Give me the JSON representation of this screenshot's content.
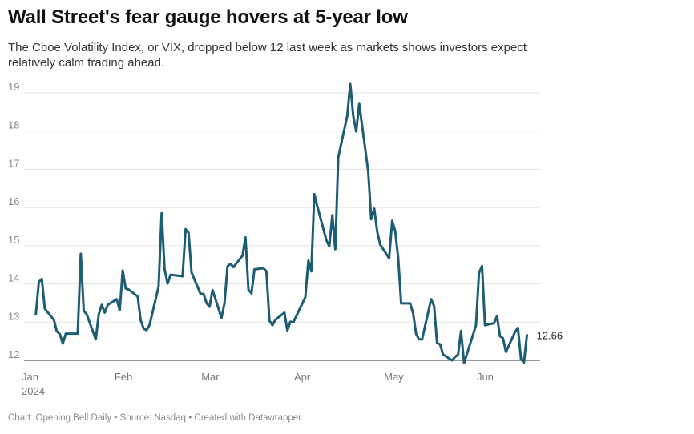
{
  "chart_data": {
    "type": "line",
    "title": "Wall Street's fear gauge hovers at 5-year low",
    "subtitle": "The Cboe Volatility Index, or VIX, dropped below 12 last week as markets shows investors expect relatively calm trading ahead.",
    "footer": "Chart: Opening Bell Daily • Source: Nasdaq • Created with Datawrapper",
    "ylim": [
      12,
      19
    ],
    "y_ticks": [
      "19",
      "18",
      "17",
      "16",
      "15",
      "14",
      "13",
      "12"
    ],
    "x_ticks": [
      {
        "label": "Jan",
        "sub": "2024"
      },
      {
        "label": "Feb",
        "sub": ""
      },
      {
        "label": "Mar",
        "sub": ""
      },
      {
        "label": "Apr",
        "sub": ""
      },
      {
        "label": "May",
        "sub": ""
      },
      {
        "label": "Jun",
        "sub": ""
      }
    ],
    "grid": true,
    "line_color": "#1d5d74",
    "series": [
      {
        "x": [
          "2024-01-02",
          "2024-01-03",
          "2024-01-04",
          "2024-01-05",
          "2024-01-08",
          "2024-01-09",
          "2024-01-10",
          "2024-01-11",
          "2024-01-12",
          "2024-01-16",
          "2024-01-17",
          "2024-01-18",
          "2024-01-19",
          "2024-01-22",
          "2024-01-23",
          "2024-01-24",
          "2024-01-25",
          "2024-01-26",
          "2024-01-29",
          "2024-01-30",
          "2024-01-31",
          "2024-02-01",
          "2024-02-02",
          "2024-02-05",
          "2024-02-06",
          "2024-02-07",
          "2024-02-08",
          "2024-02-09",
          "2024-02-12",
          "2024-02-13",
          "2024-02-14",
          "2024-02-15",
          "2024-02-16",
          "2024-02-20",
          "2024-02-21",
          "2024-02-22",
          "2024-02-23",
          "2024-02-26",
          "2024-02-27",
          "2024-02-28",
          "2024-02-29",
          "2024-03-01",
          "2024-03-04",
          "2024-03-05",
          "2024-03-06",
          "2024-03-07",
          "2024-03-08",
          "2024-03-11",
          "2024-03-12",
          "2024-03-13",
          "2024-03-14",
          "2024-03-15",
          "2024-03-18",
          "2024-03-19",
          "2024-03-20",
          "2024-03-21",
          "2024-03-22",
          "2024-03-25",
          "2024-03-26",
          "2024-03-27",
          "2024-03-28",
          "2024-04-01",
          "2024-04-02",
          "2024-04-03",
          "2024-04-04",
          "2024-04-05",
          "2024-04-08",
          "2024-04-09",
          "2024-04-10",
          "2024-04-11",
          "2024-04-12",
          "2024-04-15",
          "2024-04-16",
          "2024-04-17",
          "2024-04-18",
          "2024-04-19",
          "2024-04-22",
          "2024-04-23",
          "2024-04-24",
          "2024-04-25",
          "2024-04-26",
          "2024-04-29",
          "2024-04-30",
          "2024-05-01",
          "2024-05-02",
          "2024-05-03",
          "2024-05-06",
          "2024-05-07",
          "2024-05-08",
          "2024-05-09",
          "2024-05-10",
          "2024-05-13",
          "2024-05-14",
          "2024-05-15",
          "2024-05-16",
          "2024-05-17",
          "2024-05-20",
          "2024-05-21",
          "2024-05-22",
          "2024-05-23",
          "2024-05-24",
          "2024-05-28",
          "2024-05-29",
          "2024-05-30",
          "2024-05-31",
          "2024-06-03",
          "2024-06-04",
          "2024-06-05",
          "2024-06-06",
          "2024-06-07",
          "2024-06-10",
          "2024-06-11",
          "2024-06-12",
          "2024-06-13",
          "2024-06-14"
        ],
        "values": [
          13.2,
          14.05,
          14.13,
          13.35,
          13.06,
          12.76,
          12.69,
          12.44,
          12.7,
          12.7,
          14.79,
          13.3,
          13.2,
          12.55,
          13.2,
          13.45,
          13.25,
          13.45,
          13.6,
          13.31,
          14.35,
          13.88,
          13.85,
          13.67,
          13.05,
          12.83,
          12.79,
          12.93,
          13.93,
          15.85,
          14.38,
          14.01,
          14.24,
          14.2,
          15.43,
          15.34,
          14.3,
          13.74,
          13.74,
          13.5,
          13.4,
          13.84,
          13.11,
          13.49,
          14.46,
          14.53,
          14.44,
          14.74,
          15.22,
          13.85,
          13.75,
          14.38,
          14.41,
          14.33,
          13.04,
          12.92,
          13.06,
          13.25,
          12.78,
          13.01,
          13.0,
          13.65,
          14.61,
          14.33,
          16.35,
          16.03,
          15.15,
          14.98,
          15.8,
          14.91,
          17.31,
          18.4,
          19.23,
          18.4,
          17.99,
          18.71,
          16.94,
          15.69,
          15.97,
          15.37,
          15.03,
          14.67,
          15.65,
          15.39,
          14.68,
          13.49,
          13.49,
          13.23,
          12.69,
          12.55,
          12.55,
          13.6,
          13.42,
          12.45,
          12.42,
          12.15,
          12.0,
          12.09,
          12.15,
          12.77,
          11.93,
          12.92,
          14.28,
          14.47,
          12.92,
          12.97,
          13.16,
          12.63,
          12.58,
          12.22,
          12.74,
          12.85,
          12.04,
          11.94,
          12.66
        ]
      }
    ],
    "end_label": "12.66"
  }
}
